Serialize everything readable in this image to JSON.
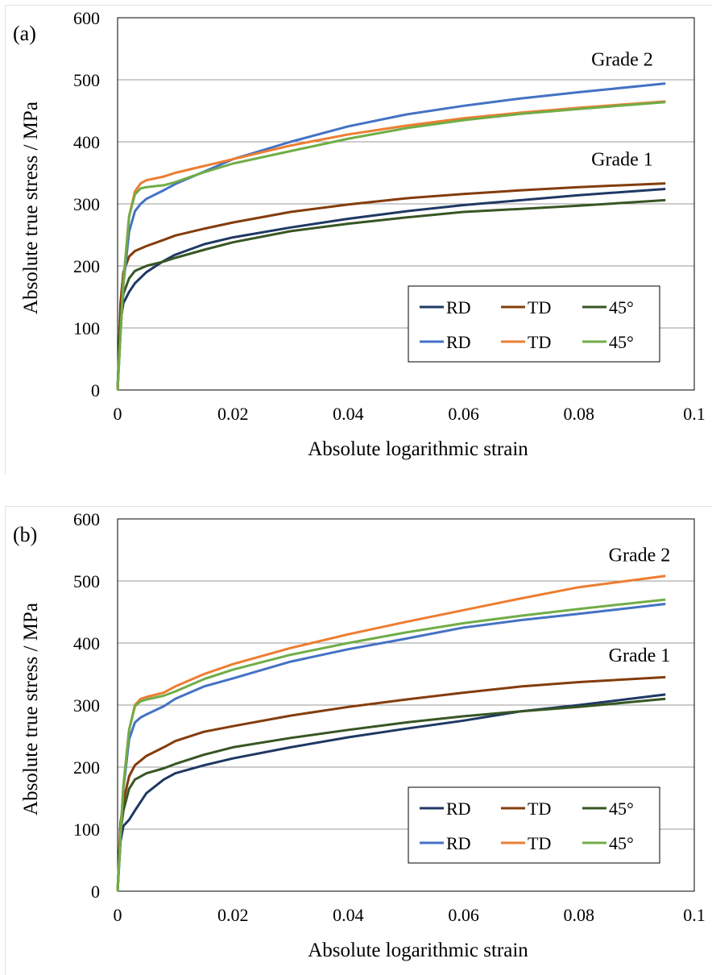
{
  "chart_data": [
    {
      "type": "line",
      "panel_label": "(a)",
      "xlabel": "Absolute logarithmic strain",
      "ylabel": "Absolute true stress / MPa",
      "xlim": [
        0,
        0.1
      ],
      "ylim": [
        0,
        600
      ],
      "xticks": [
        "0",
        "0.02",
        "0.04",
        "0.06",
        "0.08",
        "0.1"
      ],
      "yticks": [
        "0",
        "100",
        "200",
        "300",
        "400",
        "500",
        "600"
      ],
      "grid": "horizontal",
      "legend_position": "lower-right",
      "annotations": [
        {
          "text": "Grade 2",
          "x": 0.0875,
          "y": 523
        },
        {
          "text": "Grade 1",
          "x": 0.0875,
          "y": 362
        }
      ],
      "series": [
        {
          "name": "RD",
          "color": "#1f3864",
          "x": [
            0,
            0.0005,
            0.001,
            0.002,
            0.003,
            0.005,
            0.008,
            0.01,
            0.015,
            0.02,
            0.03,
            0.04,
            0.05,
            0.06,
            0.07,
            0.08,
            0.095
          ],
          "y": [
            0,
            110,
            140,
            158,
            172,
            190,
            208,
            218,
            235,
            246,
            262,
            276,
            288,
            298,
            306,
            314,
            324
          ]
        },
        {
          "name": "TD",
          "color": "#843c0c",
          "x": [
            0,
            0.0005,
            0.001,
            0.002,
            0.003,
            0.005,
            0.008,
            0.01,
            0.015,
            0.02,
            0.03,
            0.04,
            0.05,
            0.06,
            0.07,
            0.08,
            0.095
          ],
          "y": [
            0,
            140,
            190,
            215,
            224,
            232,
            242,
            249,
            260,
            270,
            287,
            299,
            309,
            316,
            322,
            327,
            333
          ]
        },
        {
          "name": "45°",
          "color": "#375623",
          "x": [
            0,
            0.0005,
            0.001,
            0.002,
            0.003,
            0.005,
            0.008,
            0.01,
            0.015,
            0.02,
            0.03,
            0.04,
            0.05,
            0.06,
            0.07,
            0.08,
            0.095
          ],
          "y": [
            0,
            120,
            155,
            180,
            192,
            200,
            207,
            213,
            226,
            238,
            256,
            268,
            278,
            287,
            292,
            297,
            306
          ]
        },
        {
          "name": "RD",
          "color": "#4472c4",
          "x": [
            0,
            0.0005,
            0.001,
            0.002,
            0.003,
            0.004,
            0.005,
            0.008,
            0.01,
            0.015,
            0.02,
            0.03,
            0.04,
            0.05,
            0.06,
            0.07,
            0.08,
            0.095
          ],
          "y": [
            0,
            90,
            170,
            255,
            288,
            300,
            308,
            322,
            332,
            352,
            372,
            400,
            425,
            444,
            458,
            470,
            480,
            494
          ]
        },
        {
          "name": "TD",
          "color": "#ed7d31",
          "x": [
            0,
            0.0005,
            0.001,
            0.002,
            0.003,
            0.004,
            0.005,
            0.008,
            0.01,
            0.015,
            0.02,
            0.03,
            0.04,
            0.05,
            0.06,
            0.07,
            0.08,
            0.095
          ],
          "y": [
            0,
            90,
            175,
            280,
            320,
            333,
            338,
            344,
            350,
            361,
            372,
            394,
            412,
            426,
            438,
            447,
            455,
            465
          ]
        },
        {
          "name": "45°",
          "color": "#70ad47",
          "x": [
            0,
            0.0005,
            0.001,
            0.002,
            0.003,
            0.004,
            0.005,
            0.008,
            0.01,
            0.015,
            0.02,
            0.03,
            0.04,
            0.05,
            0.06,
            0.07,
            0.08,
            0.095
          ],
          "y": [
            0,
            90,
            175,
            280,
            315,
            325,
            327,
            330,
            335,
            351,
            365,
            385,
            405,
            422,
            435,
            445,
            453,
            464
          ]
        }
      ]
    },
    {
      "type": "line",
      "panel_label": "(b)",
      "xlabel": "Absolute logarithmic strain",
      "ylabel": "Absolute true stress / MPa",
      "xlim": [
        0,
        0.1
      ],
      "ylim": [
        0,
        600
      ],
      "xticks": [
        "0",
        "0.02",
        "0.04",
        "0.06",
        "0.08",
        "0.1"
      ],
      "yticks": [
        "0",
        "100",
        "200",
        "300",
        "400",
        "500",
        "600"
      ],
      "grid": "horizontal",
      "legend_position": "lower-right",
      "annotations": [
        {
          "text": "Grade 2",
          "x": 0.0905,
          "y": 532
        },
        {
          "text": "Grade 1",
          "x": 0.0905,
          "y": 370
        }
      ],
      "series": [
        {
          "name": "RD",
          "color": "#1f3864",
          "x": [
            0,
            0.0005,
            0.001,
            0.002,
            0.003,
            0.005,
            0.008,
            0.01,
            0.015,
            0.02,
            0.03,
            0.04,
            0.05,
            0.06,
            0.07,
            0.08,
            0.095
          ],
          "y": [
            0,
            80,
            105,
            115,
            130,
            158,
            180,
            190,
            203,
            214,
            232,
            248,
            262,
            275,
            290,
            300,
            317
          ]
        },
        {
          "name": "TD",
          "color": "#843c0c",
          "x": [
            0,
            0.0005,
            0.001,
            0.002,
            0.003,
            0.005,
            0.008,
            0.01,
            0.015,
            0.02,
            0.03,
            0.04,
            0.05,
            0.06,
            0.07,
            0.08,
            0.095
          ],
          "y": [
            0,
            110,
            145,
            185,
            203,
            218,
            232,
            242,
            257,
            266,
            283,
            297,
            309,
            320,
            330,
            337,
            345
          ]
        },
        {
          "name": "45°",
          "color": "#375623",
          "x": [
            0,
            0.0005,
            0.001,
            0.002,
            0.003,
            0.005,
            0.008,
            0.01,
            0.015,
            0.02,
            0.03,
            0.04,
            0.05,
            0.06,
            0.07,
            0.08,
            0.095
          ],
          "y": [
            0,
            95,
            130,
            165,
            180,
            190,
            198,
            205,
            220,
            232,
            247,
            260,
            272,
            282,
            290,
            297,
            310
          ]
        },
        {
          "name": "RD",
          "color": "#4472c4",
          "x": [
            0,
            0.0005,
            0.001,
            0.002,
            0.003,
            0.004,
            0.005,
            0.008,
            0.01,
            0.015,
            0.02,
            0.03,
            0.04,
            0.05,
            0.06,
            0.07,
            0.08,
            0.095
          ],
          "y": [
            0,
            90,
            165,
            245,
            272,
            280,
            285,
            298,
            310,
            330,
            343,
            370,
            390,
            407,
            425,
            437,
            447,
            463
          ]
        },
        {
          "name": "TD",
          "color": "#ed7d31",
          "x": [
            0,
            0.0005,
            0.001,
            0.002,
            0.003,
            0.004,
            0.005,
            0.008,
            0.01,
            0.015,
            0.02,
            0.03,
            0.04,
            0.05,
            0.06,
            0.07,
            0.08,
            0.095
          ],
          "y": [
            0,
            90,
            170,
            260,
            300,
            310,
            313,
            320,
            330,
            350,
            366,
            392,
            414,
            434,
            453,
            472,
            490,
            508
          ]
        },
        {
          "name": "45°",
          "color": "#70ad47",
          "x": [
            0,
            0.0005,
            0.001,
            0.002,
            0.003,
            0.004,
            0.005,
            0.008,
            0.01,
            0.015,
            0.02,
            0.03,
            0.04,
            0.05,
            0.06,
            0.07,
            0.08,
            0.095
          ],
          "y": [
            0,
            90,
            170,
            260,
            298,
            306,
            309,
            315,
            322,
            342,
            357,
            381,
            400,
            417,
            432,
            444,
            455,
            470
          ]
        }
      ]
    }
  ]
}
